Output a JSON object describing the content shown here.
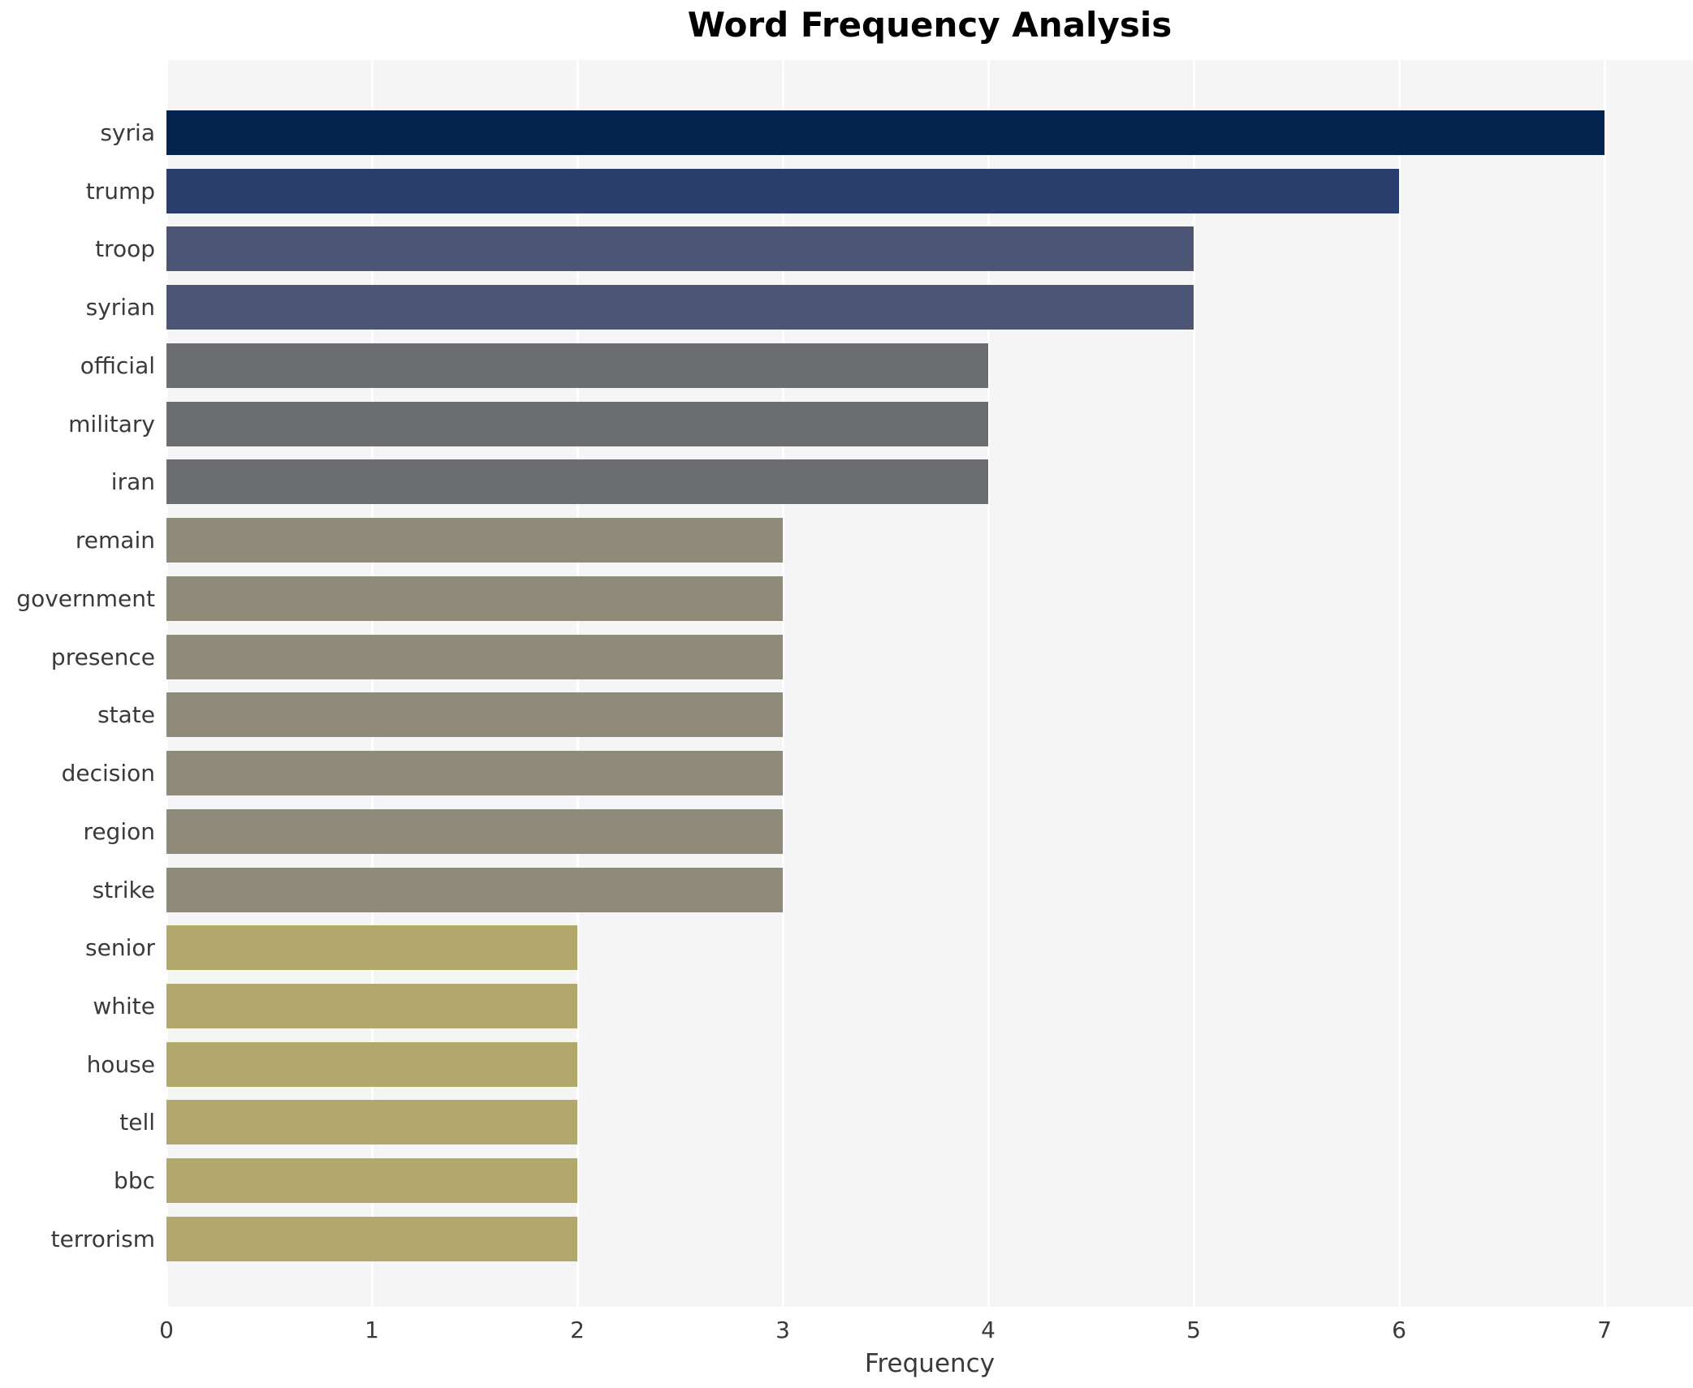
{
  "chart_data": {
    "type": "bar",
    "orientation": "horizontal",
    "title": "Word Frequency Analysis",
    "xlabel": "Frequency",
    "ylabel": "",
    "xlim": [
      0,
      7.43
    ],
    "xticks": [
      0,
      1,
      2,
      3,
      4,
      5,
      6,
      7
    ],
    "grid": "vertical white gridlines on light gray plot background",
    "legend_position": "none",
    "categories": [
      "syria",
      "trump",
      "troop",
      "syrian",
      "official",
      "military",
      "iran",
      "remain",
      "government",
      "presence",
      "state",
      "decision",
      "region",
      "strike",
      "senior",
      "white",
      "house",
      "tell",
      "bbc",
      "terrorism"
    ],
    "values": [
      7,
      6,
      5,
      5,
      4,
      4,
      4,
      3,
      3,
      3,
      3,
      3,
      3,
      3,
      2,
      2,
      2,
      2,
      2,
      2
    ],
    "bar_colors": [
      "#04234e",
      "#2a3f6d",
      "#4c5573",
      "#4c5573",
      "#6c6d70",
      "#6c6d70",
      "#6c6d70",
      "#8f8a79",
      "#8f8a79",
      "#8f8a79",
      "#8f8a79",
      "#8f8a79",
      "#8f8a79",
      "#8f8a79",
      "#b3a86c",
      "#b3a86c",
      "#b3a86c",
      "#b3a86c",
      "#b3a86c",
      "#b3a86c"
    ]
  },
  "colors": {
    "page_background": "#ffffff",
    "plot_background": "#f5f5f6",
    "gridline": "#ffffff",
    "title_text": "#000000",
    "axis_text": "#3a3a3a"
  }
}
